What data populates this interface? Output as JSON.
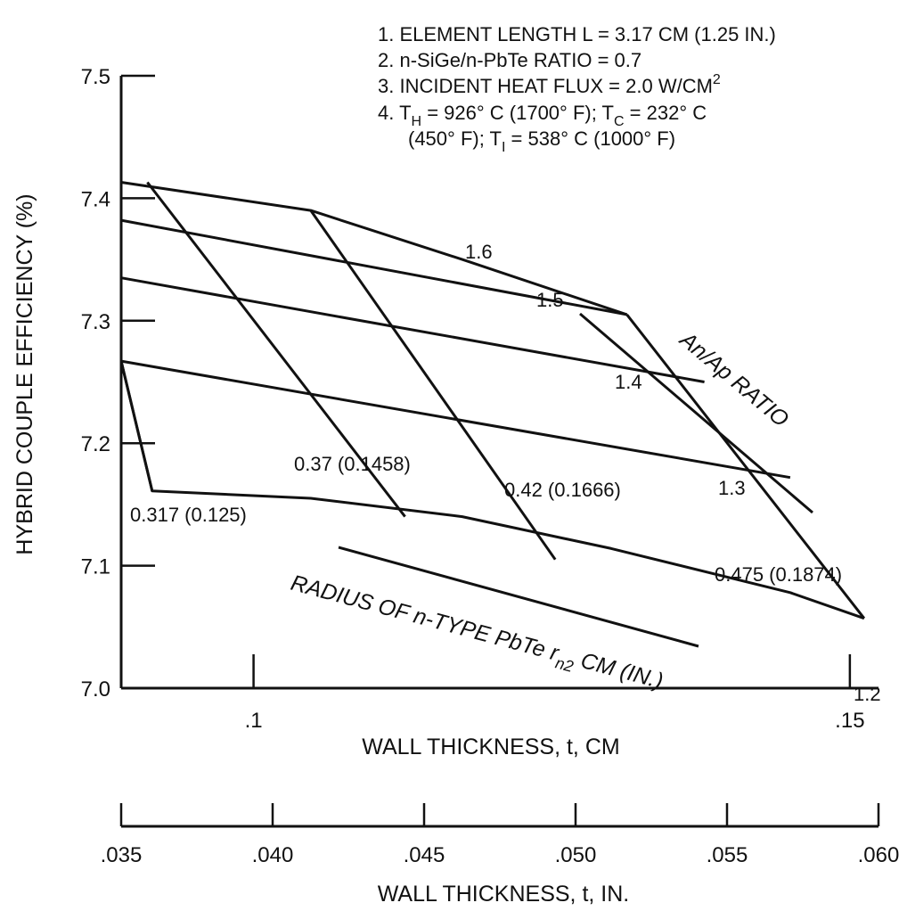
{
  "chart_data": {
    "type": "line",
    "ylabel": "HYBRID COUPLE EFFICIENCY (%)",
    "xlabel": "WALL THICKNESS, t,  CM",
    "x2label": "WALL THICKNESS, t,  IN.",
    "ylim": [
      7.0,
      7.5
    ],
    "xlim_cm": [
      0.0889,
      0.1524
    ],
    "yticks": [
      "7.0",
      "7.1",
      "7.2",
      "7.3",
      "7.4",
      "7.5"
    ],
    "xticks_cm": [
      {
        "value": 0.1,
        "label": ".1"
      },
      {
        "value": 0.15,
        "label": ".15"
      }
    ],
    "xticks_in": [
      {
        "value": 0.035,
        "label": ".035"
      },
      {
        "value": 0.04,
        "label": ".040"
      },
      {
        "value": 0.045,
        "label": ".045"
      },
      {
        "value": 0.05,
        "label": ".050"
      },
      {
        "value": 0.055,
        "label": ".055"
      },
      {
        "value": 0.06,
        "label": ".060"
      }
    ],
    "notes": [
      "1. ELEMENT LENGTH  L = 3.17 CM (1.25 IN.)",
      "2. n-SiGe/n-PbTe RATIO = 0.7",
      "3. INCIDENT HEAT FLUX = 2.0 W/CM",
      "4. T",
      "(450° F); T"
    ],
    "note_parts": {
      "sq": "2",
      "t4_h": "H",
      "t4_mid": " = 926° C (1700° F); T",
      "t4_c": "C",
      "t4_end": " = 232° C",
      "t5_i": "I",
      "t5_end": " = 538° C (1000° F)"
    },
    "ratio_title": "An/Ap RATIO",
    "radius_title": "RADIUS OF  n-TYPE PbTe r",
    "radius_sub": "n2",
    "radius_unit": " CM (IN.)",
    "ratio_series": [
      {
        "name": "1.2",
        "x": [
          0.0889,
          0.0915,
          0.1048,
          0.1175,
          0.13,
          0.145,
          0.1512
        ],
        "y": [
          7.267,
          7.161,
          7.155,
          7.14,
          7.114,
          7.078,
          7.057
        ]
      },
      {
        "name": "1.3",
        "x": [
          0.0889,
          0.145
        ],
        "y": [
          7.267,
          7.172
        ]
      },
      {
        "name": "1.4",
        "x": [
          0.0889,
          0.1378
        ],
        "y": [
          7.335,
          7.25
        ]
      },
      {
        "name": "1.5",
        "x": [
          0.0889,
          0.1313
        ],
        "y": [
          7.382,
          7.305
        ]
      },
      {
        "name": "1.6",
        "x": [
          0.0889,
          0.1048,
          0.1175,
          0.1313
        ],
        "y": [
          7.413,
          7.39,
          7.35,
          7.305
        ]
      }
    ],
    "radius_series": [
      {
        "name": "0.317 (0.125)",
        "x": [
          0.0889,
          0.0915
        ],
        "y": [
          7.267,
          7.161
        ]
      },
      {
        "name": "0.37 (0.1458)",
        "x": [
          0.0911,
          0.1127
        ],
        "y": [
          7.413,
          7.14
        ]
      },
      {
        "name": "0.42 (0.1666)",
        "x": [
          0.1048,
          0.1253
        ],
        "y": [
          7.39,
          7.105
        ]
      },
      {
        "name": "0.475 (0.1874)",
        "x": [
          0.1313,
          0.1512
        ],
        "y": [
          7.305,
          7.057
        ]
      }
    ],
    "ratio_label_values": [
      "1.2",
      "1.3",
      "1.4",
      "1.5",
      "1.6"
    ],
    "radius_label_values": [
      "0.317 (0.125)",
      "0.37 (0.1458)",
      "0.42 (0.1666)",
      "0.475 (0.1874)"
    ]
  }
}
